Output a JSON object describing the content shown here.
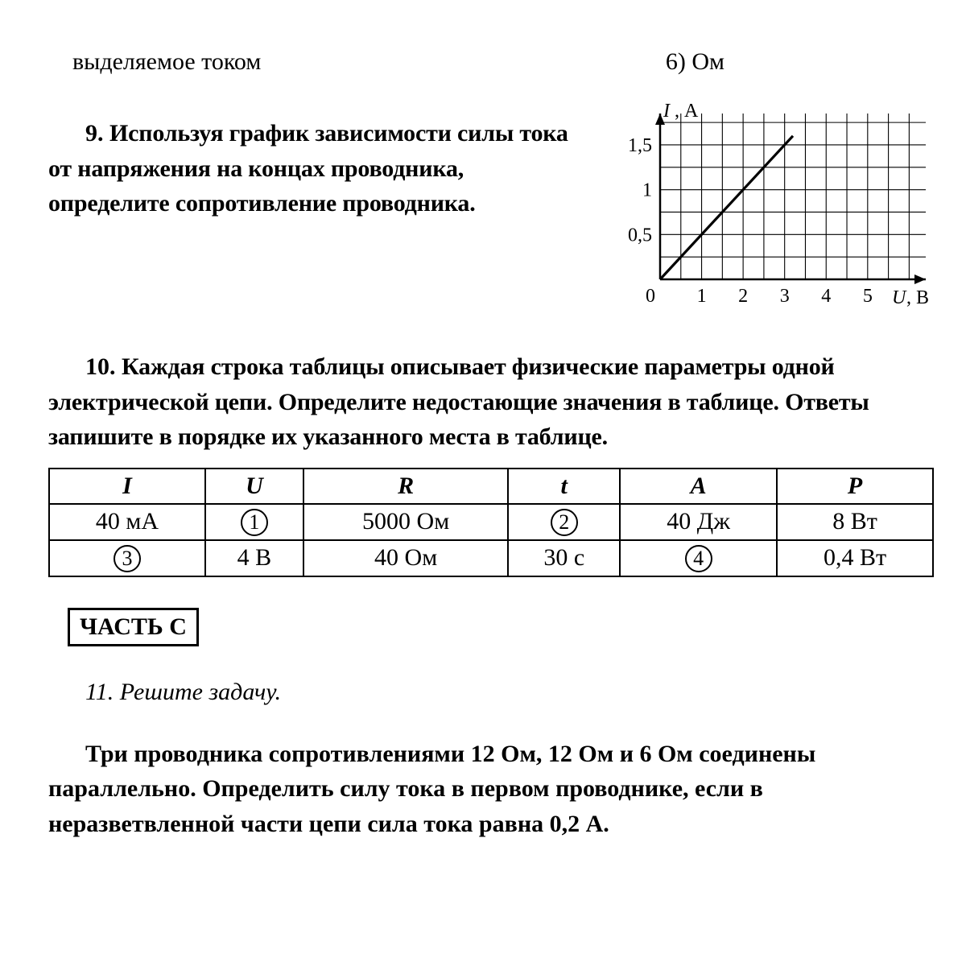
{
  "top_left": "выделяемое током",
  "top_right": "6)  Ом",
  "q9": {
    "num": "9.",
    "body": "Используя график зависимости силы тока от напряжения на концах проводника, определите сопротивление проводника."
  },
  "chart": {
    "type": "line",
    "xlabel": "U, В",
    "ylabel": "I, А",
    "xlim": [
      0,
      6.4
    ],
    "ylim": [
      0,
      1.85
    ],
    "xtick_major": [
      0,
      1,
      2,
      3,
      4,
      5
    ],
    "ytick_major": [
      0.5,
      1,
      1.5
    ],
    "ytick_labels": [
      "0,5",
      "1",
      "1,5"
    ],
    "x_minor_step": 0.5,
    "y_minor_step": 0.25,
    "grid_color": "#000000",
    "grid_width_minor": 1.1,
    "grid_width_major": 1.1,
    "line_points": [
      [
        0,
        0
      ],
      [
        3.2,
        1.6
      ]
    ],
    "line_color": "#000000",
    "line_width": 3.2,
    "axis_width": 2.5,
    "font_family": "Times New Roman",
    "label_fontsize": 24,
    "tick_fontsize": 24,
    "origin_label": "0"
  },
  "q10": {
    "num": "10.",
    "body": "Каждая строка таблицы описывает физические параметры одной электрической цепи. Определите недостающие значения в таблице. Ответы запишите в порядке их указанного места в таблице."
  },
  "table": {
    "columns": [
      "I",
      "U",
      "R",
      "t",
      "A",
      "P"
    ],
    "rows": [
      [
        "40 мА",
        {
          "circled": "1"
        },
        "5000 Ом",
        {
          "circled": "2"
        },
        "40 Дж",
        "8 Вт"
      ],
      [
        {
          "circled": "3"
        },
        "4 В",
        "40 Ом",
        "30 с",
        {
          "circled": "4"
        },
        "0,4 Вт"
      ]
    ]
  },
  "part_c": "ЧАСТЬ С",
  "q11": {
    "title": "11. Решите задачу.",
    "body": "Три проводника сопротивлениями 12 Ом, 12 Ом и 6 Ом соединены параллельно. Определить силу тока в первом проводнике, если в неразветвленной части цепи сила тока равна 0,2 А."
  }
}
